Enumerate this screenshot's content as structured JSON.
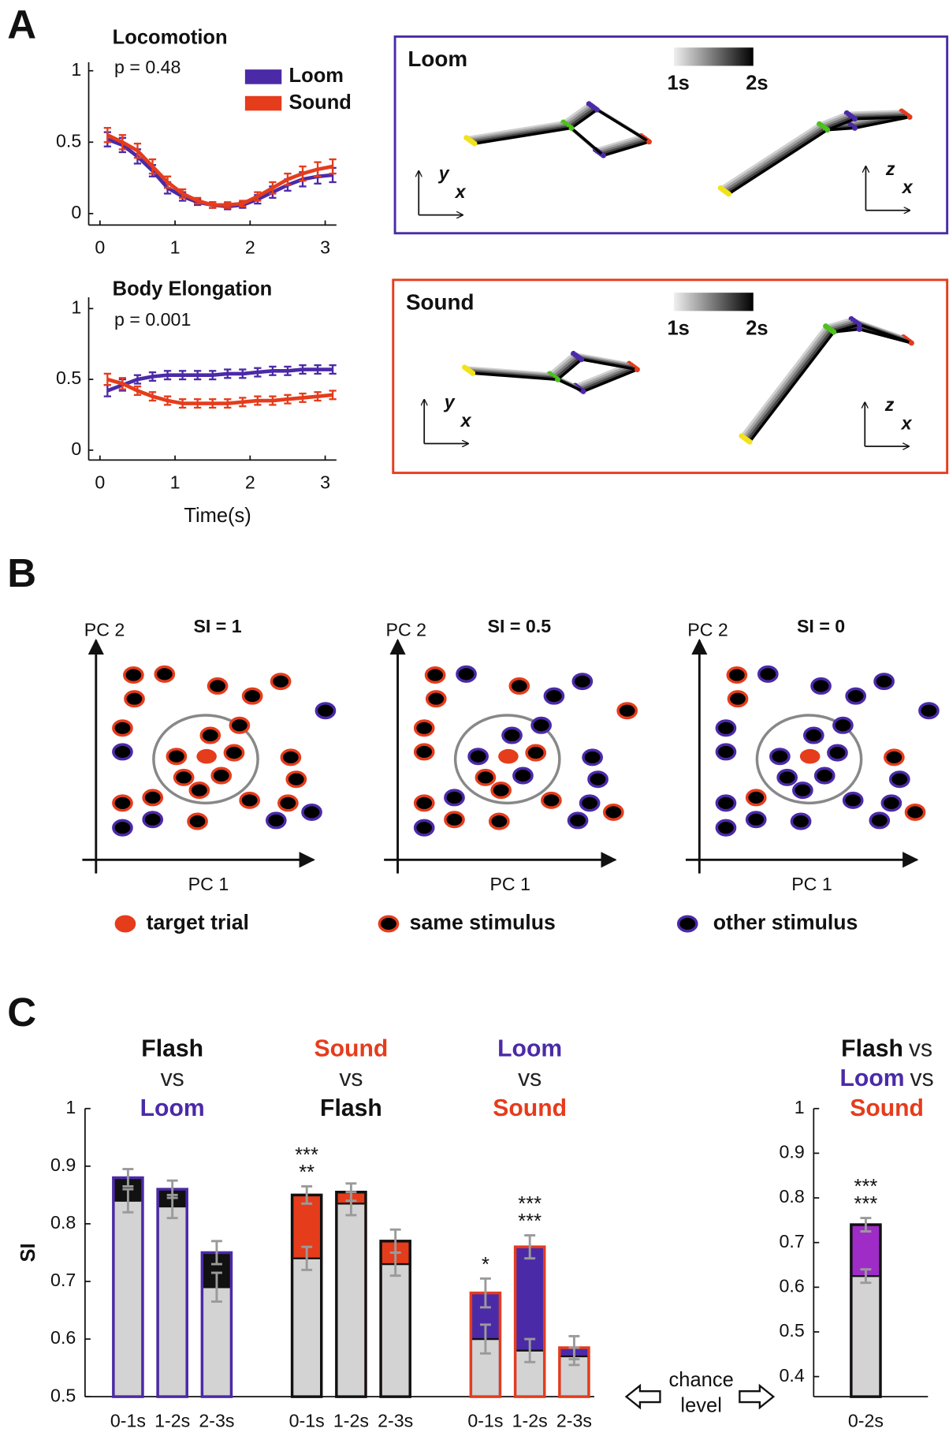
{
  "panel_labels": [
    "A",
    "B",
    "C"
  ],
  "chart_data": [
    {
      "type": "line",
      "title": "Locomotion",
      "annotation": "p = 0.48",
      "x": [
        0.1,
        0.3,
        0.5,
        0.7,
        0.9,
        1.1,
        1.3,
        1.5,
        1.7,
        1.9,
        2.1,
        2.3,
        2.5,
        2.7,
        2.9,
        3.1
      ],
      "series": [
        {
          "name": "Loom",
          "color": "#4b2aa8",
          "values": [
            0.52,
            0.48,
            0.4,
            0.3,
            0.18,
            0.12,
            0.08,
            0.06,
            0.05,
            0.06,
            0.1,
            0.15,
            0.2,
            0.24,
            0.26,
            0.27
          ],
          "errors": [
            0.05,
            0.05,
            0.05,
            0.04,
            0.04,
            0.03,
            0.02,
            0.02,
            0.02,
            0.02,
            0.03,
            0.04,
            0.04,
            0.05,
            0.05,
            0.05
          ]
        },
        {
          "name": "Sound",
          "color": "#e53c1c",
          "values": [
            0.55,
            0.5,
            0.44,
            0.33,
            0.22,
            0.14,
            0.09,
            0.06,
            0.06,
            0.07,
            0.12,
            0.18,
            0.24,
            0.28,
            0.31,
            0.33
          ],
          "errors": [
            0.05,
            0.05,
            0.05,
            0.05,
            0.04,
            0.03,
            0.02,
            0.02,
            0.02,
            0.02,
            0.03,
            0.04,
            0.04,
            0.05,
            0.05,
            0.05
          ]
        }
      ],
      "xlim": [
        -0.15,
        3.15
      ],
      "xticks": [
        0,
        1,
        2,
        3
      ],
      "ylim": [
        -0.08,
        1.06
      ],
      "yticks": [
        0,
        0.5,
        1
      ],
      "legend": "upper right"
    },
    {
      "type": "line",
      "title": "Body Elongation",
      "annotation": "p = 0.001",
      "x_label": "Time(s)",
      "x": [
        0.1,
        0.3,
        0.5,
        0.7,
        0.9,
        1.1,
        1.3,
        1.5,
        1.7,
        1.9,
        2.1,
        2.3,
        2.5,
        2.7,
        2.9,
        3.1
      ],
      "series": [
        {
          "color": "#4b2aa8",
          "values": [
            0.42,
            0.46,
            0.5,
            0.52,
            0.53,
            0.53,
            0.53,
            0.53,
            0.54,
            0.54,
            0.55,
            0.56,
            0.56,
            0.57,
            0.57,
            0.57
          ],
          "errors": [
            0.04,
            0.04,
            0.03,
            0.03,
            0.03,
            0.03,
            0.03,
            0.03,
            0.03,
            0.03,
            0.03,
            0.03,
            0.03,
            0.03,
            0.03,
            0.03
          ]
        },
        {
          "color": "#e53c1c",
          "values": [
            0.5,
            0.47,
            0.42,
            0.38,
            0.35,
            0.33,
            0.33,
            0.33,
            0.33,
            0.34,
            0.35,
            0.35,
            0.36,
            0.37,
            0.38,
            0.39
          ],
          "errors": [
            0.04,
            0.04,
            0.03,
            0.03,
            0.03,
            0.03,
            0.03,
            0.03,
            0.03,
            0.03,
            0.03,
            0.03,
            0.03,
            0.03,
            0.03,
            0.03
          ]
        }
      ],
      "xlim": [
        -0.15,
        3.15
      ],
      "xticks": [
        0,
        1,
        2,
        3
      ],
      "ylim": [
        -0.07,
        1.08
      ],
      "yticks": [
        0,
        0.5,
        1
      ]
    },
    {
      "type": "bar",
      "y_label": "SI",
      "group_titles": [
        [
          [
            {
              "text": "Flash",
              "color": "#111111"
            }
          ],
          [
            {
              "text": "vs"
            }
          ],
          [
            {
              "text": "Loom",
              "color": "#4b2aa8"
            }
          ]
        ],
        [
          [
            {
              "text": "Sound",
              "color": "#e53c1c"
            }
          ],
          [
            {
              "text": "vs"
            }
          ],
          [
            {
              "text": "Flash",
              "color": "#111111"
            }
          ]
        ],
        [
          [
            {
              "text": "Loom",
              "color": "#4b2aa8"
            }
          ],
          [
            {
              "text": "vs"
            }
          ],
          [
            {
              "text": "Sound",
              "color": "#e53c1c"
            }
          ]
        ]
      ],
      "outline_colors": [
        "#4b2aa8",
        "#111111",
        "#e53c1c"
      ],
      "top_colors": [
        "#111111",
        "#e53c1c",
        "#4b2aa8"
      ],
      "categories": [
        "0-1s",
        "1-2s",
        "2-3s",
        "0-1s",
        "1-2s",
        "2-3s",
        "0-1s",
        "1-2s",
        "2-3s"
      ],
      "series": [
        {
          "values": [
            0.88,
            0.86,
            0.75,
            0.85,
            0.855,
            0.77,
            0.68,
            0.76,
            0.585
          ],
          "errors": [
            0.015,
            0.015,
            0.02,
            0.015,
            0.015,
            0.02,
            0.025,
            0.02,
            0.02
          ]
        },
        {
          "color": "#d3d3d3",
          "values": [
            0.84,
            0.83,
            0.69,
            0.74,
            0.835,
            0.73,
            0.6,
            0.58,
            0.57
          ],
          "errors": [
            0.02,
            0.02,
            0.025,
            0.02,
            0.02,
            0.02,
            0.025,
            0.02,
            0.015
          ]
        }
      ],
      "stars": [
        null,
        null,
        null,
        [
          "***",
          "**"
        ],
        null,
        null,
        [
          "*"
        ],
        [
          "***",
          "***"
        ],
        null
      ],
      "ylim": [
        0.5,
        1
      ],
      "yticks": [
        0.5,
        0.6,
        0.7,
        0.8,
        0.9,
        1
      ]
    },
    {
      "type": "bar",
      "group_titles": [
        [
          [
            {
              "text": "Flash",
              "color": "#111111"
            },
            {
              "text": "vs"
            }
          ],
          [
            {
              "text": "Loom",
              "color": "#4b2aa8"
            },
            {
              "text": "vs"
            }
          ],
          [
            {
              "text": "Sound",
              "color": "#e53c1c"
            }
          ]
        ]
      ],
      "outline_colors": [
        "#111111"
      ],
      "top_colors": [
        "#a02cc8"
      ],
      "categories": [
        "0-2s"
      ],
      "series": [
        {
          "values": [
            0.74
          ],
          "errors": [
            0.015
          ]
        },
        {
          "color": "#d3d3d3",
          "values": [
            0.625
          ],
          "errors": [
            0.015
          ]
        }
      ],
      "stars": [
        [
          "***",
          "***"
        ]
      ],
      "ylim": [
        0.355,
        1
      ],
      "yticks": [
        0.4,
        0.5,
        0.6,
        0.7,
        0.8,
        0.9,
        1
      ]
    }
  ],
  "chance_level": [
    "chance",
    "level"
  ],
  "trajectory_panels": [
    {
      "title": "Loom",
      "scale_labels": [
        "1s",
        "2s"
      ],
      "views": [
        [
          "y",
          "x"
        ],
        [
          "z",
          "x"
        ]
      ]
    },
    {
      "title": "Sound",
      "scale_labels": [
        "1s",
        "2s"
      ],
      "views": [
        [
          "y",
          "x"
        ],
        [
          "z",
          "x"
        ]
      ]
    }
  ],
  "similarity_diagram": {
    "panels": [
      {
        "title": "SI = 1",
        "x_label": "PC 1",
        "y_label": "PC 2"
      },
      {
        "title": "SI = 0.5",
        "x_label": "PC 1",
        "y_label": "PC 2"
      },
      {
        "title": "SI = 0",
        "x_label": "PC 1",
        "y_label": "PC 2"
      }
    ],
    "legend": [
      "target trial",
      "same stimulus",
      "other stimulus"
    ]
  }
}
